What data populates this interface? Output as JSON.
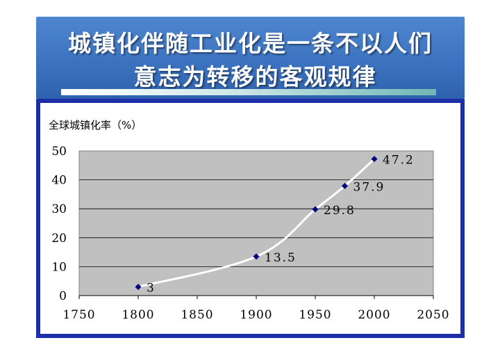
{
  "slide": {
    "title_line1": "城镇化伴随工业化是一条不以人们",
    "title_line2": "意志为转移的客观规律"
  },
  "chart_data": {
    "type": "line",
    "title": "全球城镇化率（%）",
    "xlabel": "",
    "ylabel": "",
    "xlim": [
      1750,
      2050
    ],
    "ylim": [
      0,
      50
    ],
    "x_ticks": [
      "1750",
      "1800",
      "1850",
      "1900",
      "1950",
      "2000",
      "2050"
    ],
    "y_ticks": [
      "0",
      "10",
      "20",
      "30",
      "40",
      "50"
    ],
    "grid": "horizontal",
    "legend": "none",
    "plot_background": "#c0c0c0",
    "line_color": "#ffffff",
    "marker_color": "#000080",
    "series": [
      {
        "x": [
          1800,
          1900,
          1950,
          1975,
          2000
        ],
        "values": [
          3,
          13.5,
          29.8,
          37.9,
          47.2
        ],
        "labels": [
          "3",
          "13.5",
          "29.8",
          "37.9",
          "47.2"
        ]
      }
    ]
  }
}
